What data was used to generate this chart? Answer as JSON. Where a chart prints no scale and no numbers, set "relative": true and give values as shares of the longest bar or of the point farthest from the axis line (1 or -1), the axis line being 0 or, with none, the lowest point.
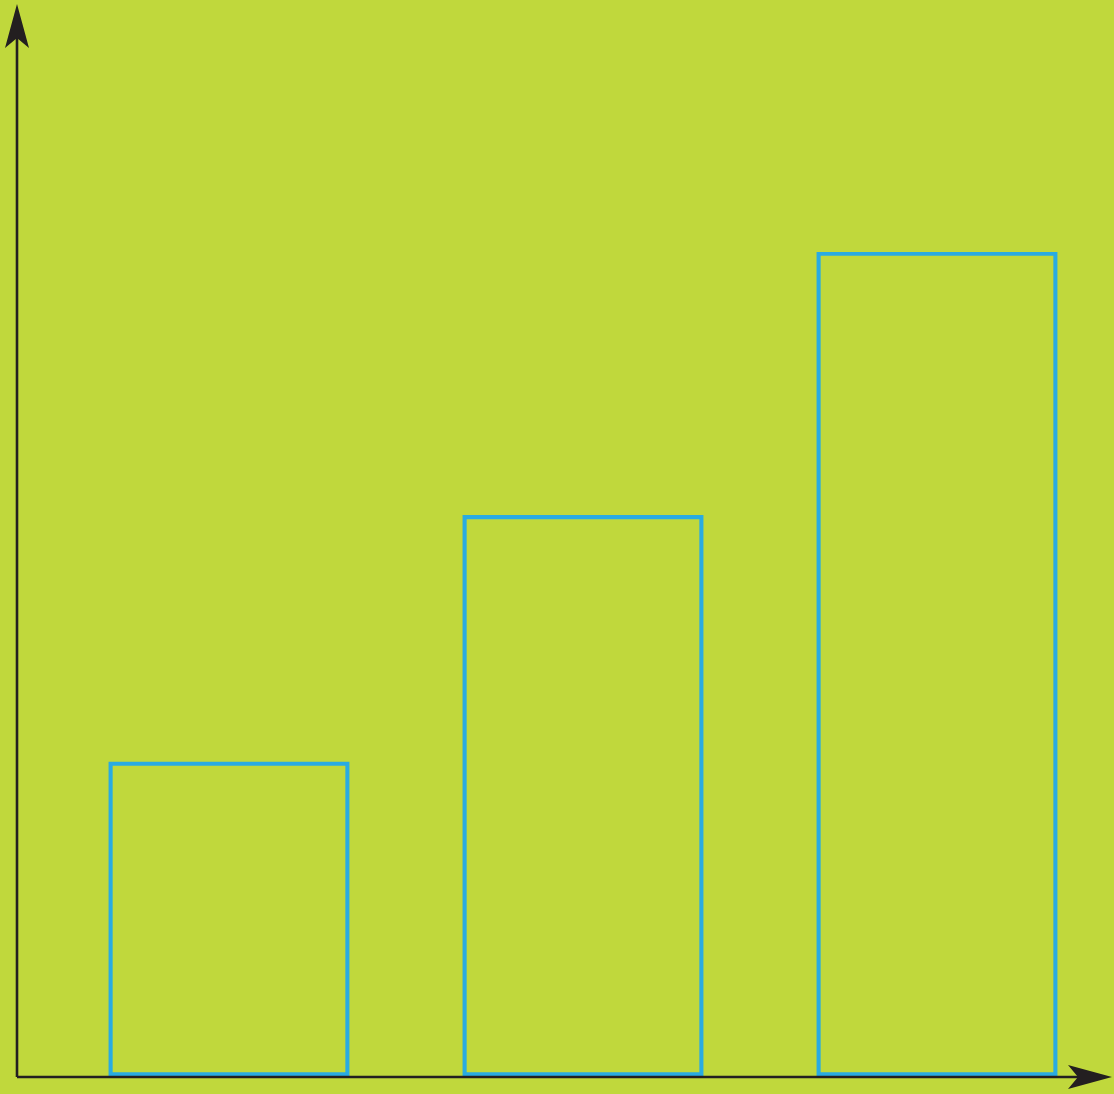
{
  "chart_data": {
    "type": "bar",
    "relative": true,
    "categories": [
      null,
      null,
      null
    ],
    "values": [
      0.381,
      0.68,
      1
    ],
    "color": "#29abe2",
    "legend": false,
    "tick_labels": false
  }
}
